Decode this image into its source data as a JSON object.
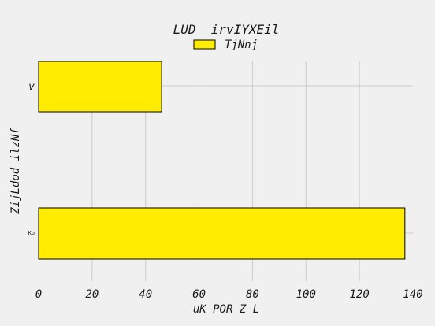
{
  "chart_data": {
    "type": "bar",
    "orientation": "horizontal",
    "title": "LUD  irvIYXEil",
    "xlabel": "uK POR Z L",
    "ylabel": "ZijLdod ilzNf",
    "categories": [
      "v",
      "Kb"
    ],
    "series": [
      {
        "name": "TjNnj",
        "values": [
          46,
          137
        ],
        "color": "#ffec00"
      }
    ],
    "xlim": [
      0,
      140
    ],
    "xticks": [
      0,
      20,
      40,
      60,
      80,
      100,
      120,
      140
    ],
    "grid": true,
    "legend_position": "top-center"
  }
}
